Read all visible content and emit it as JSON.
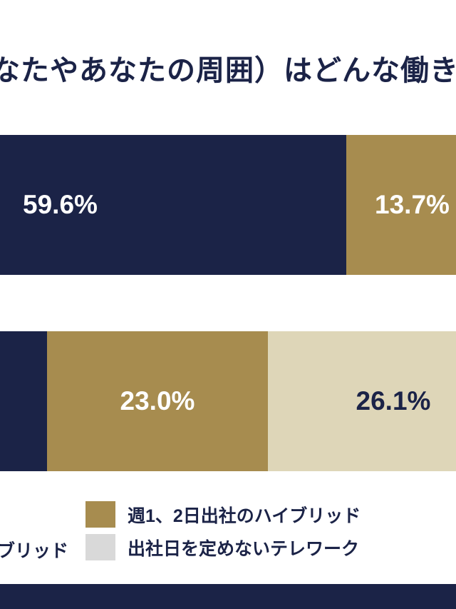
{
  "colors": {
    "navy": "#1b2347",
    "gold": "#a78c4f",
    "cream": "#ded6b8",
    "legend_gray": "#d9d9d9",
    "label_white": "#ffffff"
  },
  "chart_data": {
    "type": "bar",
    "orientation": "horizontal",
    "stacked": true,
    "cropped": true,
    "title": "なたやあなたの周囲）はどんな働き",
    "bars": [
      {
        "segments": [
          {
            "value": 59.6,
            "label": "59.6%",
            "color": "#1b2347",
            "text_color": "#ffffff"
          },
          {
            "value": 13.7,
            "label": "13.7%",
            "color": "#a78c4f",
            "text_color": "#ffffff"
          }
        ]
      },
      {
        "segments": [
          {
            "value": null,
            "label": "",
            "color": "#1b2347",
            "text_color": "#ffffff"
          },
          {
            "value": 23.0,
            "label": "23.0%",
            "color": "#a78c4f",
            "text_color": "#ffffff"
          },
          {
            "value": 26.1,
            "label": "26.1%",
            "color": "#ded6b8",
            "text_color": "#1b2347"
          }
        ]
      }
    ],
    "legend": {
      "position": "bottom",
      "items": [
        {
          "label": "週1、2日出社のハイブリッド",
          "swatch_color": "#a78c4f"
        },
        {
          "label": "出社日を定めないテレワーク",
          "swatch_color": "#d9d9d9"
        }
      ],
      "partial_left_label": "ブリッド"
    }
  }
}
